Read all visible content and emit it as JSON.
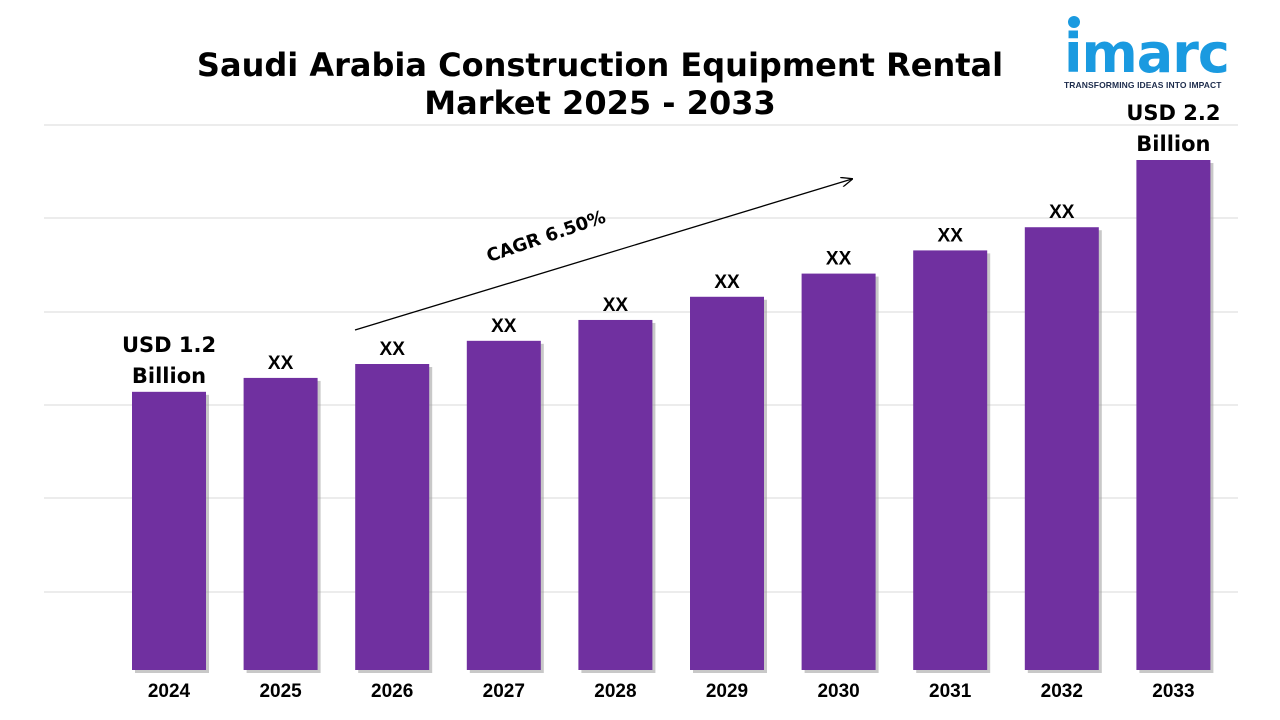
{
  "title": "Saudi Arabia Construction Equipment Rental Market 2025 - 2033",
  "logo": {
    "wordmark": "imarc",
    "tagline": "TRANSFORMING IDEAS INTO IMPACT",
    "color": "#1a9ae0"
  },
  "chart_data": {
    "type": "bar",
    "categories": [
      "2024",
      "2025",
      "2026",
      "2027",
      "2028",
      "2029",
      "2030",
      "2031",
      "2032",
      "2033"
    ],
    "values": [
      1.2,
      1.26,
      1.32,
      1.42,
      1.51,
      1.61,
      1.71,
      1.81,
      1.91,
      2.2
    ],
    "data_labels": [
      "USD 1.2 Billion",
      "XX",
      "XX",
      "XX",
      "XX",
      "XX",
      "XX",
      "XX",
      "XX",
      "USD 2.2 Billion"
    ],
    "annotation": "CAGR 6.50%",
    "bar_color": "#7030a0",
    "grid": true,
    "gridline_color": "#d9d9d9",
    "title": "Saudi Arabia Construction Equipment Rental Market 2025 - 2033",
    "xlabel": "",
    "ylabel": ""
  }
}
